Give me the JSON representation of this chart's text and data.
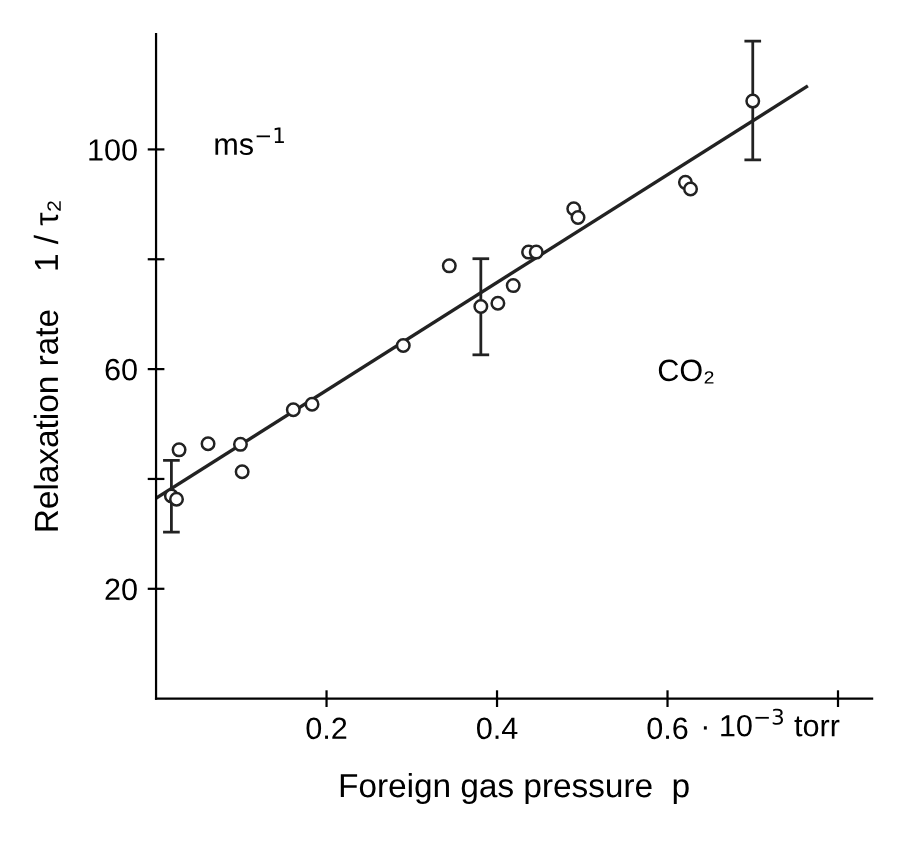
{
  "chart_data": {
    "type": "scatter",
    "xlabel": "Foreign gas pressure  p",
    "ylabel": "Relaxation rate    1 / τ₂",
    "annotations": [
      "ms$^{−1}$",
      "CO₂",
      "· 10$^{−3}$ torr"
    ],
    "xlim": [
      0,
      0.84
    ],
    "xticks": [
      0.2,
      0.4,
      0.6,
      {
        "value": 0.8,
        "label": null
      }
    ],
    "ylim": [
      0,
      121
    ],
    "yticks": [
      20,
      {
        "value": 40,
        "label": null
      },
      60,
      {
        "value": 80,
        "label": null
      },
      100
    ],
    "grid": false,
    "legend": false,
    "marker": "circle",
    "series": [
      {
        "color": "#222222",
        "x": [
          0.018,
          0.024,
          0.027,
          0.061,
          0.099,
          0.101,
          0.161,
          0.183,
          0.29,
          0.344,
          0.381,
          0.401,
          0.419,
          0.437,
          0.446,
          0.49,
          0.495,
          0.621,
          0.627,
          0.7
        ],
        "values": [
          36.9,
          36.3,
          45.3,
          46.4,
          46.3,
          41.3,
          52.6,
          53.6,
          64.3,
          78.8,
          71.4,
          72.0,
          75.2,
          81.3,
          81.3,
          89.2,
          87.6,
          94.0,
          92.8,
          108.8
        ],
        "errors": [
          [
            30.3,
            43.4
          ],
          null,
          null,
          null,
          null,
          null,
          null,
          null,
          null,
          null,
          [
            62.6,
            80.1
          ],
          null,
          null,
          null,
          null,
          null,
          null,
          null,
          null,
          [
            98.1,
            119.7
          ]
        ]
      },
      {
        "type": "line",
        "color": "#222222",
        "x": [
          0,
          0.763
        ],
        "values": [
          36.5,
          111.4
        ],
        "marker": "none",
        "line_style": "solid"
      }
    ]
  }
}
